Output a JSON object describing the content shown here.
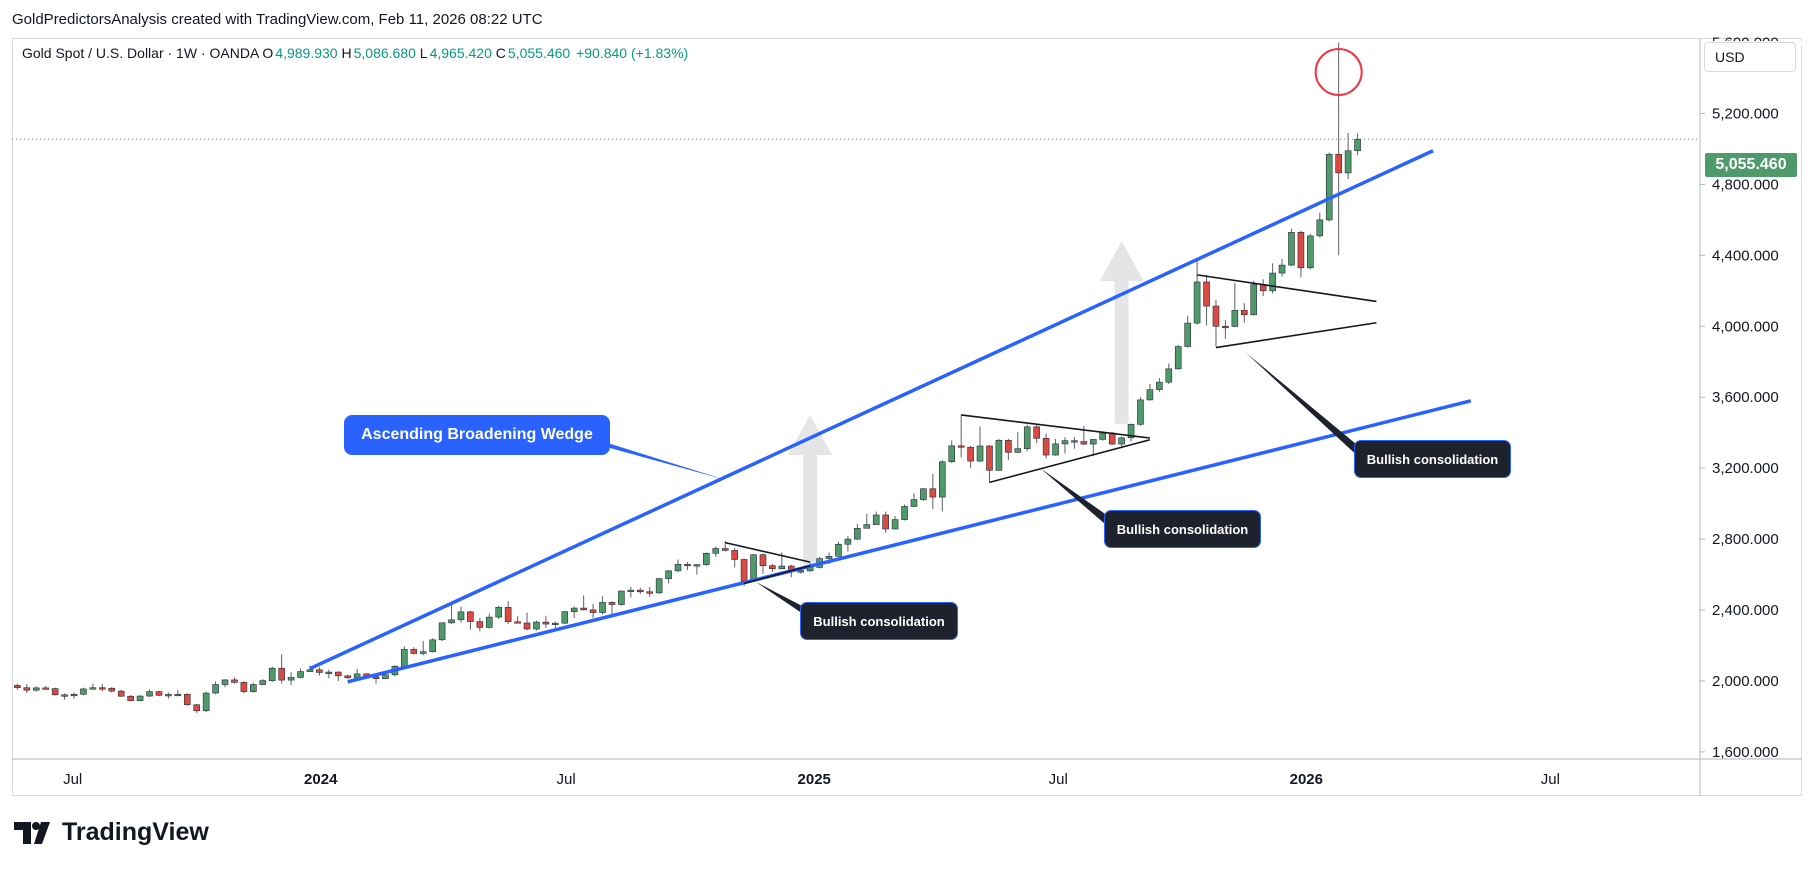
{
  "caption": "GoldPredictorsAnalysis created with TradingView.com, Feb 11, 2026 08:22 UTC",
  "legend": {
    "symbol": "Gold Spot / U.S. Dollar · 1W · OANDA",
    "open_label": "O",
    "open": "4,989.930",
    "high_label": "H",
    "high": "5,086.680",
    "low_label": "L",
    "low": "4,965.420",
    "close_label": "C",
    "close": "5,055.460",
    "change": "+90.840 (+1.83%)"
  },
  "currency": "USD",
  "last_price": "5,055.460",
  "brand": "TradingView",
  "colors": {
    "up": "#4e9a6a",
    "down": "#d74b43",
    "wedge": "#2962ff",
    "note_bg": "#1e222d",
    "alert_circle": "#f23645"
  },
  "annotations": {
    "wedge_label": "Ascending Broadening Wedge",
    "consolidation_1": "Bullish consolidation",
    "consolidation_2": "Bullish consolidation",
    "consolidation_3": "Bullish consolidation"
  },
  "chart_data": {
    "type": "candlestick",
    "timeframe": "1W",
    "yticks": [
      "1,600.000",
      "2,000.000",
      "2,400.000",
      "2,800.000",
      "3,200.000",
      "3,600.000",
      "4,000.000",
      "4,400.000",
      "4,800.000",
      "5,200.000"
    ],
    "ytick_values": [
      1600,
      2000,
      2400,
      2800,
      3200,
      3600,
      4000,
      4400,
      4800,
      5200
    ],
    "ylim": [
      1560,
      5620
    ],
    "xticks": [
      {
        "label": "Jul",
        "date": "2023-07-01",
        "bold": false
      },
      {
        "label": "2024",
        "date": "2024-01-01",
        "bold": true
      },
      {
        "label": "Jul",
        "date": "2024-07-01",
        "bold": false
      },
      {
        "label": "2025",
        "date": "2025-01-01",
        "bold": true
      },
      {
        "label": "Jul",
        "date": "2025-07-01",
        "bold": false
      },
      {
        "label": "2026",
        "date": "2026-01-01",
        "bold": true
      },
      {
        "label": "Jul",
        "date": "2026-07-01",
        "bold": false
      }
    ],
    "xlim": [
      "2023-05-17",
      "2026-10-20"
    ],
    "candles": [
      [
        "2023-05-21",
        1975,
        1985,
        1950,
        1962
      ],
      [
        "2023-05-28",
        1962,
        1983,
        1932,
        1948
      ],
      [
        "2023-06-04",
        1948,
        1970,
        1940,
        1961
      ],
      [
        "2023-06-11",
        1961,
        1972,
        1952,
        1957
      ],
      [
        "2023-06-18",
        1957,
        1962,
        1918,
        1922
      ],
      [
        "2023-06-25",
        1922,
        1930,
        1895,
        1919
      ],
      [
        "2023-07-02",
        1919,
        1935,
        1900,
        1925
      ],
      [
        "2023-07-09",
        1925,
        1962,
        1920,
        1955
      ],
      [
        "2023-07-16",
        1955,
        1985,
        1950,
        1962
      ],
      [
        "2023-07-23",
        1962,
        1982,
        1942,
        1959
      ],
      [
        "2023-07-30",
        1959,
        1965,
        1935,
        1943
      ],
      [
        "2023-08-06",
        1943,
        1950,
        1910,
        1914
      ],
      [
        "2023-08-13",
        1914,
        1920,
        1885,
        1889
      ],
      [
        "2023-08-20",
        1889,
        1920,
        1885,
        1915
      ],
      [
        "2023-08-27",
        1915,
        1952,
        1910,
        1940
      ],
      [
        "2023-09-03",
        1940,
        1945,
        1915,
        1919
      ],
      [
        "2023-09-10",
        1919,
        1935,
        1900,
        1924
      ],
      [
        "2023-09-17",
        1924,
        1948,
        1915,
        1925
      ],
      [
        "2023-09-24",
        1925,
        1930,
        1860,
        1866
      ],
      [
        "2023-10-01",
        1866,
        1870,
        1820,
        1832
      ],
      [
        "2023-10-08",
        1832,
        1940,
        1825,
        1932
      ],
      [
        "2023-10-15",
        1932,
        1998,
        1925,
        1980
      ],
      [
        "2023-10-22",
        1980,
        2010,
        1965,
        2006
      ],
      [
        "2023-10-29",
        2006,
        2020,
        1985,
        1992
      ],
      [
        "2023-11-05",
        1992,
        1998,
        1930,
        1940
      ],
      [
        "2023-11-12",
        1940,
        1990,
        1935,
        1980
      ],
      [
        "2023-11-19",
        1980,
        2010,
        1975,
        2002
      ],
      [
        "2023-11-26",
        2002,
        2080,
        1995,
        2072
      ],
      [
        "2023-12-03",
        2072,
        2150,
        1985,
        2005
      ],
      [
        "2023-12-10",
        2005,
        2050,
        1975,
        2020
      ],
      [
        "2023-12-17",
        2020,
        2070,
        2015,
        2053
      ],
      [
        "2023-12-24",
        2053,
        2088,
        2050,
        2063
      ],
      [
        "2023-12-31",
        2063,
        2078,
        2030,
        2048
      ],
      [
        "2024-01-07",
        2048,
        2065,
        2015,
        2050
      ],
      [
        "2024-01-14",
        2050,
        2055,
        2000,
        2029
      ],
      [
        "2024-01-21",
        2029,
        2035,
        2010,
        2018
      ],
      [
        "2024-01-28",
        2018,
        2068,
        2015,
        2040
      ],
      [
        "2024-02-04",
        2040,
        2045,
        2015,
        2024
      ],
      [
        "2024-02-11",
        2024,
        2030,
        1985,
        2013
      ],
      [
        "2024-02-18",
        2013,
        2042,
        2010,
        2035
      ],
      [
        "2024-02-25",
        2035,
        2090,
        2025,
        2083
      ],
      [
        "2024-03-03",
        2083,
        2195,
        2080,
        2178
      ],
      [
        "2024-03-10",
        2178,
        2190,
        2150,
        2155
      ],
      [
        "2024-03-17",
        2155,
        2225,
        2145,
        2165
      ],
      [
        "2024-03-24",
        2165,
        2240,
        2160,
        2232
      ],
      [
        "2024-03-31",
        2232,
        2330,
        2225,
        2328
      ],
      [
        "2024-04-07",
        2328,
        2430,
        2320,
        2345
      ],
      [
        "2024-04-14",
        2345,
        2420,
        2330,
        2390
      ],
      [
        "2024-04-21",
        2390,
        2395,
        2290,
        2335
      ],
      [
        "2024-04-28",
        2335,
        2355,
        2280,
        2302
      ],
      [
        "2024-05-05",
        2302,
        2380,
        2295,
        2360
      ],
      [
        "2024-05-12",
        2360,
        2425,
        2350,
        2415
      ],
      [
        "2024-05-19",
        2415,
        2450,
        2320,
        2334
      ],
      [
        "2024-05-26",
        2334,
        2365,
        2325,
        2327
      ],
      [
        "2024-06-02",
        2327,
        2385,
        2285,
        2293
      ],
      [
        "2024-06-09",
        2293,
        2340,
        2285,
        2332
      ],
      [
        "2024-06-16",
        2332,
        2368,
        2300,
        2321
      ],
      [
        "2024-06-23",
        2321,
        2335,
        2295,
        2326
      ],
      [
        "2024-06-30",
        2326,
        2395,
        2320,
        2391
      ],
      [
        "2024-07-07",
        2391,
        2420,
        2355,
        2411
      ],
      [
        "2024-07-14",
        2411,
        2483,
        2398,
        2401
      ],
      [
        "2024-07-21",
        2401,
        2435,
        2355,
        2386
      ],
      [
        "2024-07-28",
        2386,
        2478,
        2375,
        2443
      ],
      [
        "2024-08-04",
        2443,
        2450,
        2365,
        2431
      ],
      [
        "2024-08-11",
        2431,
        2510,
        2425,
        2507
      ],
      [
        "2024-08-18",
        2507,
        2531,
        2470,
        2512
      ],
      [
        "2024-08-25",
        2512,
        2525,
        2490,
        2503
      ],
      [
        "2024-09-01",
        2503,
        2530,
        2475,
        2497
      ],
      [
        "2024-09-08",
        2497,
        2580,
        2490,
        2577
      ],
      [
        "2024-09-15",
        2577,
        2625,
        2550,
        2621
      ],
      [
        "2024-09-22",
        2621,
        2685,
        2615,
        2658
      ],
      [
        "2024-09-29",
        2658,
        2670,
        2625,
        2653
      ],
      [
        "2024-10-06",
        2653,
        2660,
        2600,
        2656
      ],
      [
        "2024-10-13",
        2656,
        2725,
        2650,
        2720
      ],
      [
        "2024-10-20",
        2720,
        2758,
        2700,
        2747
      ],
      [
        "2024-10-27",
        2747,
        2790,
        2730,
        2736
      ],
      [
        "2024-11-03",
        2736,
        2750,
        2640,
        2685
      ],
      [
        "2024-11-10",
        2685,
        2690,
        2536,
        2563
      ],
      [
        "2024-11-17",
        2563,
        2715,
        2560,
        2712
      ],
      [
        "2024-11-24",
        2712,
        2720,
        2605,
        2650
      ],
      [
        "2024-12-01",
        2650,
        2660,
        2615,
        2633
      ],
      [
        "2024-12-08",
        2633,
        2725,
        2630,
        2648
      ],
      [
        "2024-12-15",
        2648,
        2655,
        2585,
        2622
      ],
      [
        "2024-12-22",
        2622,
        2640,
        2605,
        2621
      ],
      [
        "2024-12-29",
        2621,
        2665,
        2615,
        2640
      ],
      [
        "2025-01-05",
        2640,
        2700,
        2635,
        2690
      ],
      [
        "2025-01-12",
        2690,
        2725,
        2660,
        2703
      ],
      [
        "2025-01-19",
        2703,
        2785,
        2700,
        2771
      ],
      [
        "2025-01-26",
        2771,
        2817,
        2730,
        2800
      ],
      [
        "2025-02-02",
        2800,
        2886,
        2795,
        2861
      ],
      [
        "2025-02-09",
        2861,
        2942,
        2860,
        2882
      ],
      [
        "2025-02-16",
        2882,
        2955,
        2880,
        2936
      ],
      [
        "2025-02-23",
        2936,
        2955,
        2835,
        2857
      ],
      [
        "2025-03-02",
        2857,
        2930,
        2855,
        2910
      ],
      [
        "2025-03-09",
        2910,
        2995,
        2905,
        2984
      ],
      [
        "2025-03-16",
        2984,
        3057,
        2980,
        3023
      ],
      [
        "2025-03-23",
        3023,
        3087,
        3015,
        3084
      ],
      [
        "2025-03-30",
        3084,
        3168,
        2970,
        3037
      ],
      [
        "2025-04-06",
        3037,
        3245,
        2956,
        3236
      ],
      [
        "2025-04-13",
        3236,
        3357,
        3230,
        3326
      ],
      [
        "2025-04-20",
        3326,
        3500,
        3260,
        3318
      ],
      [
        "2025-04-27",
        3318,
        3325,
        3202,
        3240
      ],
      [
        "2025-05-04",
        3240,
        3435,
        3235,
        3325
      ],
      [
        "2025-05-11",
        3325,
        3330,
        3120,
        3188
      ],
      [
        "2025-05-18",
        3188,
        3365,
        3185,
        3357
      ],
      [
        "2025-05-25",
        3357,
        3365,
        3245,
        3289
      ],
      [
        "2025-06-01",
        3289,
        3403,
        3285,
        3310
      ],
      [
        "2025-06-08",
        3310,
        3446,
        3295,
        3433
      ],
      [
        "2025-06-15",
        3433,
        3452,
        3340,
        3368
      ],
      [
        "2025-06-22",
        3368,
        3395,
        3255,
        3274
      ],
      [
        "2025-06-29",
        3274,
        3365,
        3270,
        3337
      ],
      [
        "2025-07-06",
        3337,
        3375,
        3282,
        3355
      ],
      [
        "2025-07-13",
        3355,
        3375,
        3310,
        3350
      ],
      [
        "2025-07-20",
        3350,
        3438,
        3330,
        3336
      ],
      [
        "2025-07-27",
        3336,
        3365,
        3268,
        3362
      ],
      [
        "2025-08-03",
        3362,
        3408,
        3355,
        3398
      ],
      [
        "2025-08-10",
        3398,
        3405,
        3330,
        3336
      ],
      [
        "2025-08-17",
        3336,
        3378,
        3312,
        3371
      ],
      [
        "2025-08-24",
        3371,
        3452,
        3350,
        3447
      ],
      [
        "2025-08-31",
        3447,
        3600,
        3440,
        3585
      ],
      [
        "2025-09-07",
        3585,
        3675,
        3580,
        3643
      ],
      [
        "2025-09-14",
        3643,
        3708,
        3630,
        3685
      ],
      [
        "2025-09-21",
        3685,
        3790,
        3675,
        3760
      ],
      [
        "2025-09-28",
        3760,
        3895,
        3755,
        3886
      ],
      [
        "2025-10-05",
        3886,
        4060,
        3880,
        4018
      ],
      [
        "2025-10-12",
        4018,
        4380,
        4010,
        4250
      ],
      [
        "2025-10-19",
        4250,
        4290,
        4005,
        4114
      ],
      [
        "2025-10-26",
        4114,
        4150,
        3885,
        4000
      ],
      [
        "2025-11-02",
        4000,
        4035,
        3930,
        3999
      ],
      [
        "2025-11-09",
        3999,
        4245,
        3995,
        4090
      ],
      [
        "2025-11-16",
        4090,
        4130,
        4020,
        4065
      ],
      [
        "2025-11-23",
        4065,
        4255,
        4060,
        4235
      ],
      [
        "2025-11-30",
        4235,
        4265,
        4170,
        4200
      ],
      [
        "2025-12-07",
        4200,
        4355,
        4185,
        4300
      ],
      [
        "2025-12-14",
        4300,
        4380,
        4280,
        4345
      ],
      [
        "2025-12-21",
        4345,
        4550,
        4340,
        4530
      ],
      [
        "2025-12-28",
        4530,
        4540,
        4275,
        4330
      ],
      [
        "2026-01-04",
        4330,
        4520,
        4320,
        4510
      ],
      [
        "2026-01-11",
        4510,
        4640,
        4500,
        4600
      ],
      [
        "2026-01-18",
        4600,
        4980,
        4590,
        4970
      ],
      [
        "2026-01-25",
        4970,
        5600,
        4400,
        4865
      ],
      [
        "2026-02-01",
        4865,
        5090,
        4830,
        4990
      ],
      [
        "2026-02-08",
        4990,
        5087,
        4965,
        5055
      ]
    ]
  }
}
